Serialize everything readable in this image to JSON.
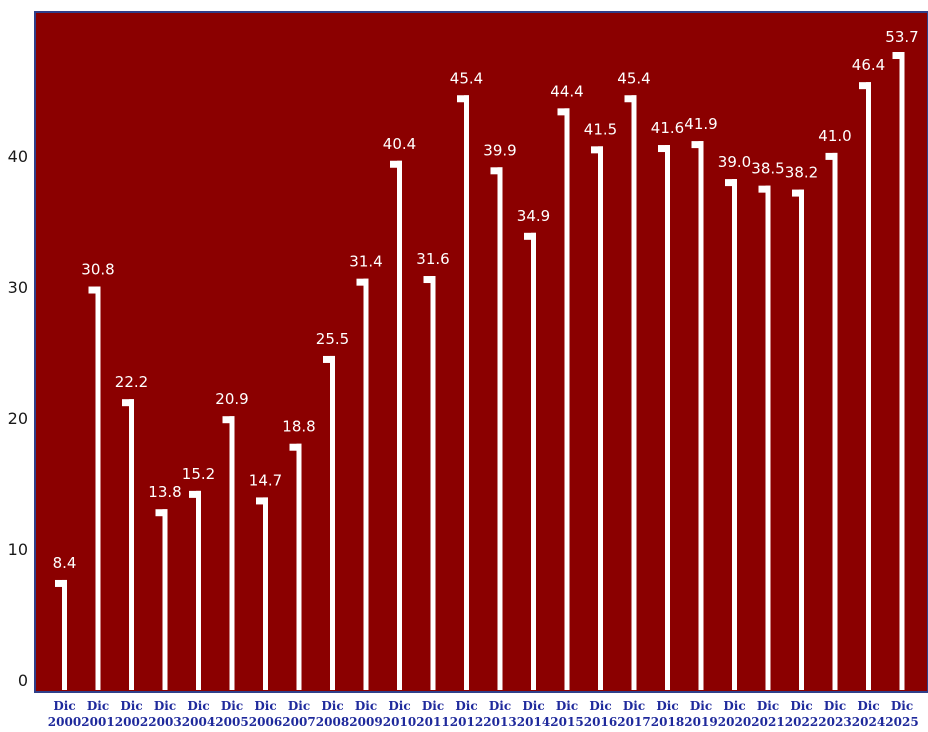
{
  "chart_data": {
    "type": "bar",
    "title": "",
    "xlabel": "",
    "ylabel": "",
    "ylim": [
      0,
      50
    ],
    "yticks": [
      0,
      10,
      20,
      30,
      40
    ],
    "grid": false,
    "legend": "none",
    "categories": [
      [
        "Dic",
        "2000"
      ],
      [
        "Dic",
        "2001"
      ],
      [
        "Dic",
        "2002"
      ],
      [
        "Dic",
        "2003"
      ],
      [
        "Dic",
        "2004"
      ],
      [
        "Dic",
        "2005"
      ],
      [
        "Dic",
        "2006"
      ],
      [
        "Dic",
        "2007"
      ],
      [
        "Dic",
        "2008"
      ],
      [
        "Dic",
        "2009"
      ],
      [
        "Dic",
        "2010"
      ],
      [
        "Dic",
        "2011"
      ],
      [
        "Dic",
        "2012"
      ],
      [
        "Dic",
        "2013"
      ],
      [
        "Dic",
        "2014"
      ],
      [
        "Dic",
        "2015"
      ],
      [
        "Dic",
        "2016"
      ],
      [
        "Dic",
        "2017"
      ],
      [
        "Dic",
        "2018"
      ],
      [
        "Dic",
        "2019"
      ],
      [
        "Dic",
        "2020"
      ],
      [
        "Dic",
        "2021"
      ],
      [
        "Dic",
        "2022"
      ],
      [
        "Dic",
        "2023"
      ],
      [
        "Dic",
        "2024"
      ],
      [
        "Dic",
        "2025"
      ]
    ],
    "values": [
      8.4,
      30.8,
      22.2,
      13.8,
      15.2,
      20.9,
      14.7,
      18.8,
      25.5,
      31.4,
      40.4,
      31.6,
      45.4,
      39.9,
      34.9,
      44.4,
      41.5,
      45.4,
      41.6,
      41.9,
      39.0,
      38.5,
      38.2,
      41.0,
      46.4,
      53.7
    ],
    "data_labels": [
      "8.4",
      "30.8",
      "22.2",
      "13.8",
      "15.2",
      "20.9",
      "14.7",
      "18.8",
      "25.5",
      "31.4",
      "40.4",
      "31.6",
      "45.4",
      "39.9",
      "34.9",
      "44.4",
      "41.5",
      "45.4",
      "41.6",
      "41.9",
      "39.0",
      "38.5",
      "38.2",
      "41.0",
      "46.4",
      "53.7"
    ],
    "colors": {
      "plot_background": "#8b0000",
      "bars": "#ffffff",
      "frame": "#2f3f8a",
      "x_tick_text": "#1f2a9c",
      "y_tick_text": "#1a1a1a",
      "data_label_text": "#ffffff"
    }
  }
}
